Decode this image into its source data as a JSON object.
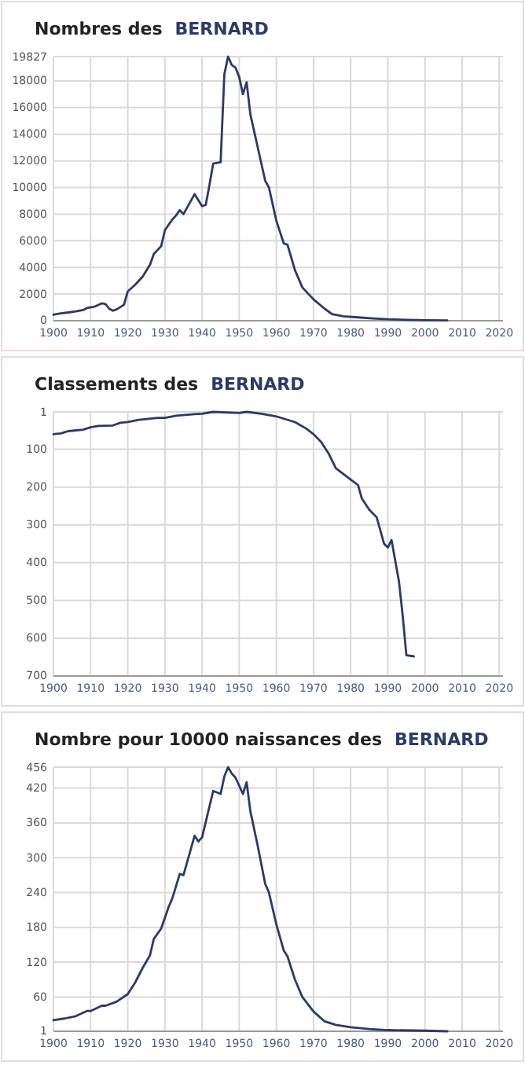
{
  "chart_data": [
    {
      "type": "line",
      "title": "Nombres des",
      "subtitle": "BERNARD",
      "grid": true,
      "x": [
        1900,
        1902,
        1904,
        1906,
        1908,
        1909,
        1911,
        1913,
        1914,
        1915,
        1916,
        1917,
        1919,
        1920,
        1922,
        1924,
        1926,
        1927,
        1929,
        1930,
        1932,
        1933,
        1934,
        1935,
        1938,
        1940,
        1941,
        1942,
        1943,
        1945,
        1946,
        1947,
        1948,
        1949,
        1950,
        1951,
        1952,
        1953,
        1955,
        1957,
        1958,
        1960,
        1962,
        1963,
        1965,
        1967,
        1970,
        1973,
        1975,
        1978,
        1982,
        1986,
        1990,
        1995,
        2000,
        2006
      ],
      "series": [
        {
          "color": "#2b3a6b",
          "values": [
            450,
            550,
            620,
            700,
            800,
            950,
            1050,
            1300,
            1250,
            900,
            750,
            850,
            1200,
            2200,
            2700,
            3300,
            4200,
            5000,
            5600,
            6800,
            7600,
            7900,
            8300,
            8000,
            9500,
            8600,
            8700,
            10200,
            11800,
            11900,
            18500,
            19827,
            19200,
            19000,
            18300,
            17000,
            17900,
            15500,
            13000,
            10500,
            10000,
            7500,
            5800,
            5700,
            3800,
            2500,
            1600,
            900,
            500,
            330,
            250,
            170,
            110,
            70,
            40,
            20
          ]
        }
      ],
      "xlim": [
        1900,
        2021
      ],
      "xticks": [
        1900,
        1910,
        1920,
        1930,
        1940,
        1950,
        1960,
        1970,
        1980,
        1990,
        2000,
        2010,
        2020
      ],
      "ylim": [
        0,
        19827
      ],
      "yticks": [
        0,
        2000,
        4000,
        6000,
        8000,
        10000,
        12000,
        14000,
        16000,
        18000,
        19827
      ]
    },
    {
      "type": "line",
      "title": "Classements des",
      "subtitle": "BERNARD",
      "grid": true,
      "x": [
        1900,
        1902,
        1904,
        1908,
        1910,
        1912,
        1916,
        1918,
        1920,
        1923,
        1928,
        1930,
        1933,
        1938,
        1940,
        1943,
        1950,
        1952,
        1956,
        1960,
        1965,
        1968,
        1970,
        1972,
        1974,
        1976,
        1978,
        1980,
        1982,
        1983,
        1985,
        1987,
        1989,
        1990,
        1991,
        1993,
        1994,
        1995,
        1997
      ],
      "series": [
        {
          "color": "#2b3a6b",
          "values": [
            60,
            58,
            52,
            48,
            42,
            38,
            37,
            30,
            28,
            22,
            17,
            17,
            11,
            7,
            6,
            1,
            4,
            1,
            6,
            13,
            28,
            45,
            60,
            80,
            110,
            150,
            165,
            180,
            195,
            230,
            260,
            280,
            350,
            360,
            340,
            450,
            540,
            645,
            648
          ]
        }
      ],
      "xlim": [
        1900,
        2021
      ],
      "xticks": [
        1900,
        1910,
        1920,
        1930,
        1940,
        1950,
        1960,
        1970,
        1980,
        1990,
        2000,
        2010,
        2020
      ],
      "ylim": [
        700,
        1
      ],
      "yticks": [
        1,
        100,
        200,
        300,
        400,
        500,
        600,
        700
      ]
    },
    {
      "type": "line",
      "title": "Nombre pour 10000 naissances des",
      "subtitle": "BERNARD",
      "grid": true,
      "x": [
        1900,
        1903,
        1906,
        1909,
        1910,
        1913,
        1914,
        1917,
        1920,
        1922,
        1924,
        1926,
        1927,
        1929,
        1931,
        1932,
        1934,
        1935,
        1938,
        1939,
        1940,
        1943,
        1945,
        1946,
        1947,
        1948,
        1949,
        1951,
        1952,
        1953,
        1955,
        1957,
        1958,
        1960,
        1962,
        1963,
        1965,
        1967,
        1970,
        1973,
        1976,
        1980,
        1985,
        1990,
        2000,
        2006
      ],
      "series": [
        {
          "color": "#2b3a6b",
          "values": [
            20,
            23,
            27,
            36,
            36,
            45,
            45,
            52,
            65,
            85,
            110,
            132,
            160,
            178,
            215,
            230,
            272,
            270,
            338,
            328,
            335,
            415,
            410,
            440,
            456,
            445,
            438,
            410,
            430,
            380,
            320,
            255,
            240,
            185,
            140,
            130,
            90,
            60,
            35,
            18,
            12,
            8,
            5,
            3,
            2,
            1
          ]
        }
      ],
      "xlim": [
        1900,
        2021
      ],
      "xticks": [
        1900,
        1910,
        1920,
        1930,
        1940,
        1950,
        1960,
        1970,
        1980,
        1990,
        2000,
        2010,
        2020
      ],
      "ylim": [
        1,
        456
      ],
      "yticks": [
        1,
        60,
        120,
        180,
        240,
        300,
        360,
        420,
        456
      ]
    }
  ]
}
